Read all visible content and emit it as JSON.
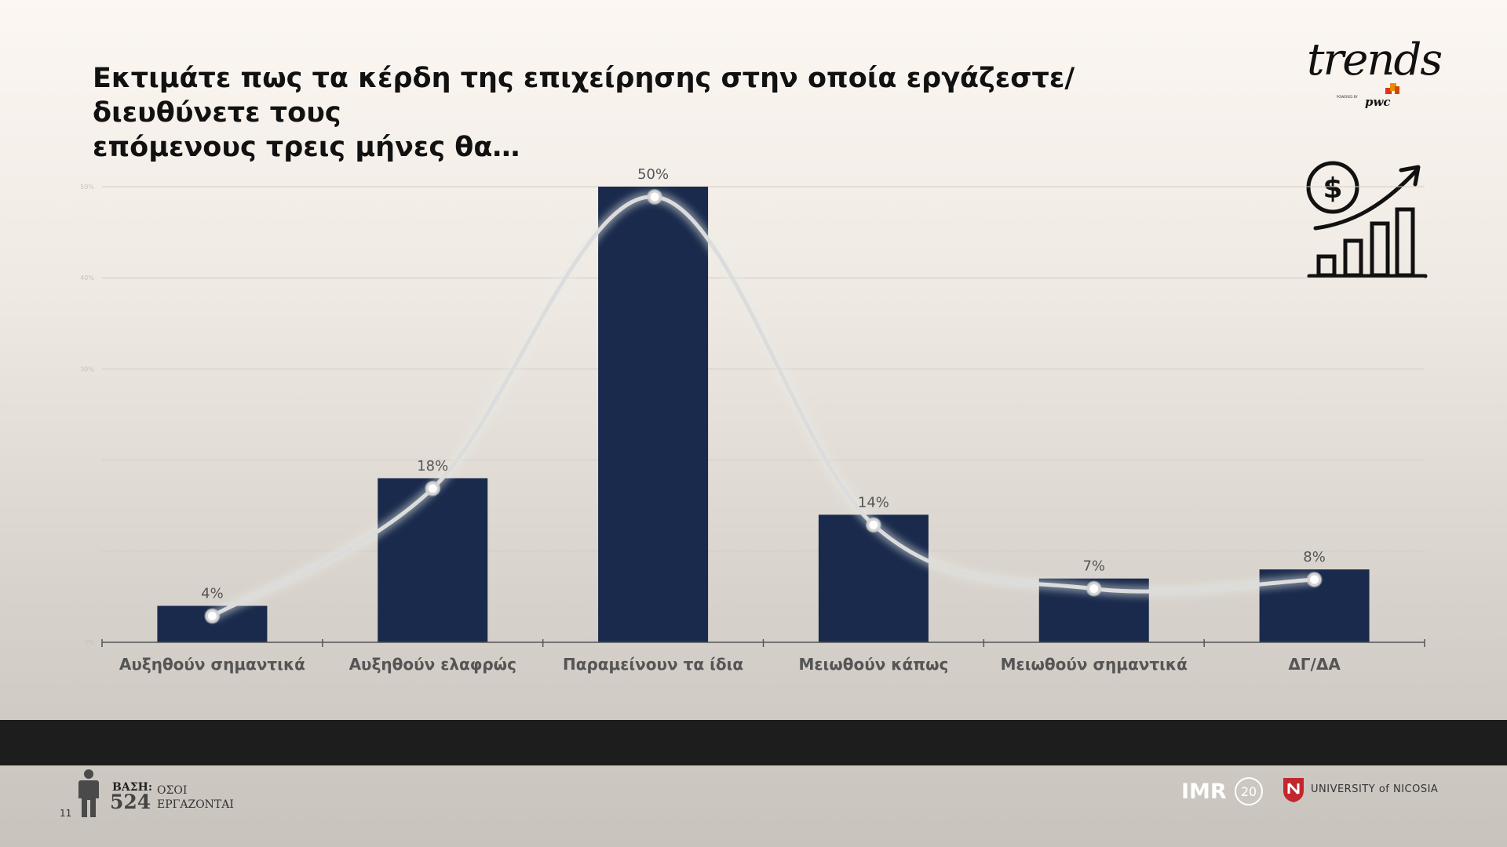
{
  "title_lines": [
    "Εκτιμάτε πως τα κέρδη της επιχείρησης στην οποία εργάζεστε/διευθύνετε τους",
    "επόμενους τρεις μήνες θα…"
  ],
  "brand": {
    "name": "trends",
    "powered": "POWERED BY",
    "partner": "pwc"
  },
  "icons": {
    "top_right": "money-growth-chart-icon",
    "person": "person-silhouette-icon"
  },
  "colors": {
    "bar": "#1a2a4c",
    "curve": "#dcdcdc",
    "label": "#555555",
    "band": "#1d1d1d",
    "un_red": "#c1272d"
  },
  "chart_data": {
    "type": "bar",
    "categories": [
      "Αυξηθούν σημαντικά",
      "Αυξηθούν ελαφρώς",
      "Παραμείνουν τα ίδια",
      "Μειωθούν κάπως",
      "Μειωθούν σημαντικά",
      "ΔΓ/ΔΑ"
    ],
    "values": [
      4,
      18,
      50,
      14,
      7,
      8
    ],
    "value_labels": [
      "4%",
      "18%",
      "50%",
      "14%",
      "7%",
      "8%"
    ],
    "overlay": "smoothed-line-through-values",
    "y_ticks": [
      0,
      10,
      20,
      30,
      40,
      50
    ],
    "y_tick_labels": [
      "0%",
      "",
      "",
      "30%",
      "40%",
      "50%"
    ],
    "ylim": [
      0,
      50
    ],
    "grid": true,
    "legend": "none"
  },
  "footer": {
    "base_label": "ΒΑΣΗ:",
    "base_count": "524",
    "base_desc": [
      "ΟΣΟΙ",
      "ΕΡΓΑΖΟΝΤΑΙ"
    ],
    "page_number": "11",
    "imr_logo": "IMR",
    "imr_anniversary": "20",
    "university": "UNIVERSITY of NICOSIA"
  }
}
